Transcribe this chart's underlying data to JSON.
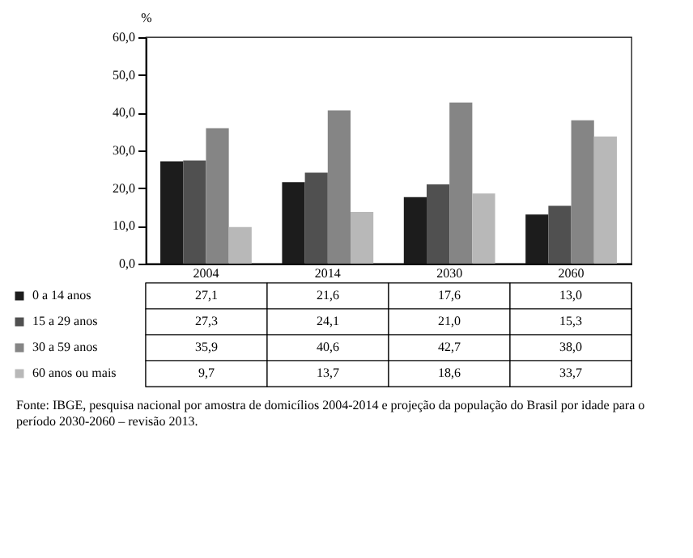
{
  "chart_data": {
    "type": "bar",
    "ylabel": "%",
    "categories": [
      "2004",
      "2014",
      "2030",
      "2060"
    ],
    "legend": "bottom left",
    "ylim": [
      0,
      60
    ],
    "yticks": [
      {
        "value": 0,
        "label": "0,0"
      },
      {
        "value": 10,
        "label": "10,0"
      },
      {
        "value": 20,
        "label": "20,0"
      },
      {
        "value": 30,
        "label": "30,0"
      },
      {
        "value": 40,
        "label": "40,0"
      },
      {
        "value": 50,
        "label": "50,0"
      },
      {
        "value": 60,
        "label": "60,0"
      }
    ],
    "series": [
      {
        "name": "0 a 14 anos",
        "color": "#1c1c1c",
        "values": [
          27.1,
          21.6,
          17.6,
          13.0
        ],
        "value_labels": [
          "27,1",
          "21,6",
          "17,6",
          "13,0"
        ]
      },
      {
        "name": "15 a 29 anos",
        "color": "#505050",
        "values": [
          27.3,
          24.1,
          21.0,
          15.3
        ],
        "value_labels": [
          "27,3",
          "24,1",
          "21,0",
          "15,3"
        ]
      },
      {
        "name": "30 a 59 anos",
        "color": "#858585",
        "values": [
          35.9,
          40.6,
          42.7,
          38.0
        ],
        "value_labels": [
          "35,9",
          "40,6",
          "42,7",
          "38,0"
        ]
      },
      {
        "name": "60 anos ou mais",
        "color": "#b8b8b8",
        "values": [
          9.7,
          13.7,
          18.6,
          33.7
        ],
        "value_labels": [
          "9,7",
          "13,7",
          "18,6",
          "33,7"
        ]
      }
    ],
    "annotations": [
      "Fonte: IBGE, pesquisa nacional por amostra de domicílios 2004-2014 e projeção da população do Brasil por idade para o período 2030-2060 – revisão 2013."
    ]
  }
}
